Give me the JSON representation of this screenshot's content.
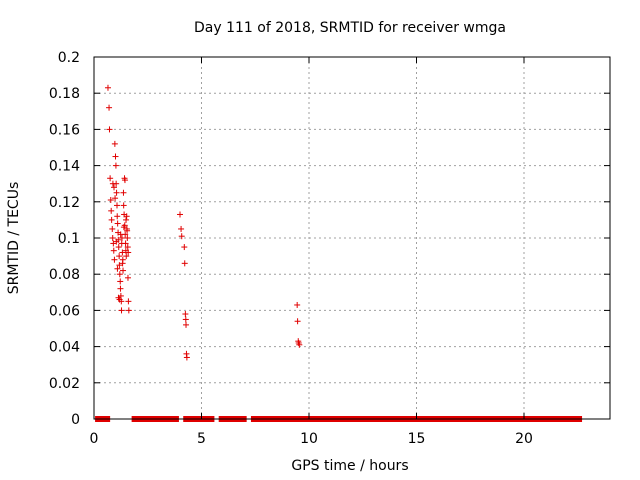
{
  "chart_data": {
    "type": "scatter",
    "title": "Day 111 of 2018, SRMTID for receiver wmga",
    "xlabel": "GPS time / hours",
    "ylabel": "SRMTID / TECUs",
    "xlim": [
      0,
      24
    ],
    "ylim": [
      0,
      0.2
    ],
    "xticks": [
      0,
      5,
      10,
      15,
      20
    ],
    "xtick_labels": [
      "0",
      "5",
      "10",
      "15",
      "20"
    ],
    "yticks": [
      0,
      0.02,
      0.04,
      0.06,
      0.08,
      0.1,
      0.12,
      0.14,
      0.16,
      0.18,
      0.2
    ],
    "ytick_labels": [
      "0",
      "0.02",
      "0.04",
      "0.06",
      "0.08",
      "0.1",
      "0.12",
      "0.14",
      "0.16",
      "0.18",
      "0.2"
    ],
    "grid": true,
    "marker": "+",
    "color": "#e00000",
    "series": [
      {
        "name": "SRMTID",
        "points": [
          [
            0.65,
            0.183
          ],
          [
            0.7,
            0.172
          ],
          [
            0.72,
            0.16
          ],
          [
            0.75,
            0.133
          ],
          [
            0.78,
            0.121
          ],
          [
            0.8,
            0.115
          ],
          [
            0.82,
            0.11
          ],
          [
            0.85,
            0.105
          ],
          [
            0.87,
            0.1
          ],
          [
            0.9,
            0.097
          ],
          [
            0.92,
            0.093
          ],
          [
            0.95,
            0.088
          ],
          [
            0.97,
            0.152
          ],
          [
            1.0,
            0.145
          ],
          [
            1.02,
            0.14
          ],
          [
            1.03,
            0.13
          ],
          [
            1.05,
            0.125
          ],
          [
            1.07,
            0.118
          ],
          [
            1.08,
            0.112
          ],
          [
            1.1,
            0.108
          ],
          [
            1.12,
            0.103
          ],
          [
            1.13,
            0.099
          ],
          [
            1.15,
            0.095
          ],
          [
            1.17,
            0.09
          ],
          [
            1.18,
            0.085
          ],
          [
            1.2,
            0.08
          ],
          [
            1.22,
            0.076
          ],
          [
            1.23,
            0.072
          ],
          [
            1.25,
            0.068
          ],
          [
            1.27,
            0.065
          ],
          [
            1.28,
            0.06
          ],
          [
            1.3,
            0.1
          ],
          [
            1.32,
            0.092
          ],
          [
            1.33,
            0.086
          ],
          [
            1.35,
            0.082
          ],
          [
            1.37,
            0.125
          ],
          [
            1.38,
            0.118
          ],
          [
            1.4,
            0.113
          ],
          [
            1.42,
            0.133
          ],
          [
            1.43,
            0.107
          ],
          [
            1.45,
            0.102
          ],
          [
            1.47,
            0.097
          ],
          [
            1.48,
            0.093
          ],
          [
            1.5,
            0.09
          ],
          [
            1.52,
            0.112
          ],
          [
            1.53,
            0.105
          ],
          [
            1.55,
            0.1
          ],
          [
            1.57,
            0.095
          ],
          [
            1.58,
            0.078
          ],
          [
            1.6,
            0.065
          ],
          [
            1.62,
            0.06
          ],
          [
            0.88,
            0.13
          ],
          [
            0.93,
            0.128
          ],
          [
            0.98,
            0.122
          ],
          [
            1.04,
            0.098
          ],
          [
            1.09,
            0.083
          ],
          [
            1.14,
            0.067
          ],
          [
            1.19,
            0.066
          ],
          [
            1.24,
            0.102
          ],
          [
            1.29,
            0.097
          ],
          [
            1.34,
            0.088
          ],
          [
            1.39,
            0.106
          ],
          [
            1.44,
            0.132
          ],
          [
            1.49,
            0.11
          ],
          [
            1.54,
            0.104
          ],
          [
            1.59,
            0.092
          ],
          [
            4.0,
            0.113
          ],
          [
            4.05,
            0.105
          ],
          [
            4.08,
            0.101
          ],
          [
            4.2,
            0.095
          ],
          [
            4.22,
            0.086
          ],
          [
            4.25,
            0.058
          ],
          [
            4.27,
            0.055
          ],
          [
            4.28,
            0.052
          ],
          [
            4.3,
            0.036
          ],
          [
            4.32,
            0.034
          ],
          [
            9.45,
            0.063
          ],
          [
            9.47,
            0.054
          ],
          [
            9.5,
            0.043
          ],
          [
            9.52,
            0.042
          ],
          [
            9.55,
            0.041
          ]
        ]
      }
    ],
    "zero_segments": [
      [
        0.05,
        0.75
      ],
      [
        1.75,
        3.95
      ],
      [
        4.15,
        5.6
      ],
      [
        5.8,
        7.1
      ],
      [
        7.3,
        22.7
      ]
    ]
  }
}
